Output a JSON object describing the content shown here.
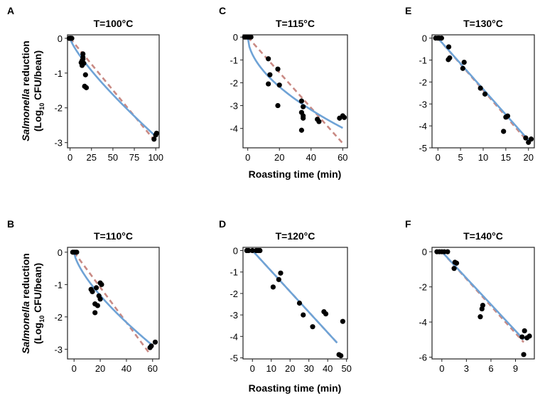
{
  "figure": {
    "ylabel_line1_italic": "Salmonella",
    "ylabel_line1_rest": " reduction",
    "ylabel_line2_pre": "(Log",
    "ylabel_line2_sub": "10",
    "ylabel_line2_post": " CFU/bean)",
    "xlabel": "Roasting time (min)",
    "colors": {
      "points": "#000000",
      "fit_solid": "#6fa3d6",
      "fit_dashed": "#c98a84",
      "frame": "#222222"
    }
  },
  "chart_data": [
    {
      "panel": "A",
      "type": "scatter",
      "title": "T=100°C",
      "xlim": [
        -3,
        104
      ],
      "ylim": [
        -3.15,
        0.1
      ],
      "xticks": [
        0,
        25,
        50,
        75,
        100
      ],
      "yticks": [
        0,
        -1,
        -2,
        -3
      ],
      "xlabel": "",
      "ylabel": "Salmonella reduction (Log10 CFU/bean)",
      "points": [
        [
          -1,
          0
        ],
        [
          0,
          0
        ],
        [
          1,
          0
        ],
        [
          2,
          0
        ],
        [
          0.5,
          0
        ],
        [
          15,
          -0.45
        ],
        [
          15,
          -0.55
        ],
        [
          14,
          -0.65
        ],
        [
          15,
          -0.6
        ],
        [
          13,
          -0.7
        ],
        [
          14,
          -0.78
        ],
        [
          16,
          -0.72
        ],
        [
          18,
          -1.05
        ],
        [
          17,
          -1.38
        ],
        [
          19,
          -1.42
        ],
        [
          98,
          -2.9
        ],
        [
          100,
          -2.78
        ],
        [
          101,
          -2.73
        ]
      ],
      "fit_solid": {
        "model": "weibull",
        "x_end": 100,
        "y_end": -2.82,
        "shape": 0.8
      },
      "fit_dashed": {
        "model": "linear",
        "x_start": 0,
        "x_end": 98,
        "y_end": -2.92
      }
    },
    {
      "panel": "C",
      "type": "scatter",
      "title": "T=115°C",
      "xlim": [
        -3,
        63
      ],
      "ylim": [
        -4.85,
        0.1
      ],
      "xticks": [
        0,
        20,
        40,
        60
      ],
      "yticks": [
        0,
        -1,
        -2,
        -3,
        -4
      ],
      "xlabel": "Roasting time (min)",
      "ylabel": "",
      "points": [
        [
          -1,
          0
        ],
        [
          0,
          0
        ],
        [
          1,
          0
        ],
        [
          2,
          0
        ],
        [
          -2,
          0
        ],
        [
          13,
          -0.95
        ],
        [
          14,
          -1.65
        ],
        [
          13,
          -2.05
        ],
        [
          19,
          -1.4
        ],
        [
          20,
          -2.1
        ],
        [
          19,
          -3.0
        ],
        [
          34,
          -2.8
        ],
        [
          35,
          -3.05
        ],
        [
          34,
          -3.3
        ],
        [
          35,
          -3.45
        ],
        [
          35,
          -3.55
        ],
        [
          34,
          -4.08
        ],
        [
          44,
          -3.6
        ],
        [
          45,
          -3.7
        ],
        [
          58,
          -3.55
        ],
        [
          60,
          -3.45
        ],
        [
          61,
          -3.52
        ]
      ],
      "fit_solid": {
        "model": "weibull",
        "x_end": 60,
        "y_end": -3.98,
        "shape": 0.55
      },
      "fit_dashed": {
        "model": "linear",
        "x_start": 0,
        "x_end": 60,
        "y_end": -4.65
      }
    },
    {
      "panel": "E",
      "type": "scatter",
      "title": "T=130°C",
      "xlim": [
        -1.3,
        21.3
      ],
      "ylim": [
        -5,
        0.15
      ],
      "xticks": [
        0,
        5,
        10,
        15,
        20
      ],
      "yticks": [
        0,
        -1,
        -2,
        -3,
        -4,
        -5
      ],
      "xlabel": "",
      "ylabel": "",
      "points": [
        [
          -0.5,
          0
        ],
        [
          0,
          0
        ],
        [
          0.3,
          0
        ],
        [
          0.8,
          0
        ],
        [
          2.4,
          -0.4
        ],
        [
          2.3,
          -0.98
        ],
        [
          2.6,
          -0.9
        ],
        [
          5.5,
          -1.38
        ],
        [
          5.8,
          -1.1
        ],
        [
          9.4,
          -2.28
        ],
        [
          10.4,
          -2.55
        ],
        [
          14.5,
          -4.25
        ],
        [
          15,
          -3.6
        ],
        [
          15.4,
          -3.55
        ],
        [
          19.4,
          -4.55
        ],
        [
          20,
          -4.75
        ],
        [
          20.6,
          -4.6
        ]
      ],
      "fit_solid": {
        "model": "weibull",
        "x_end": 20,
        "y_end": -4.65,
        "shape": 1.0
      },
      "fit_dashed": {
        "model": "linear",
        "x_start": 0,
        "x_end": 20,
        "y_end": -4.75
      }
    },
    {
      "panel": "B",
      "type": "scatter",
      "title": "T=110°C",
      "xlim": [
        -5,
        65
      ],
      "ylim": [
        -3.3,
        0.15
      ],
      "xticks": [
        0,
        20,
        40,
        60
      ],
      "yticks": [
        0,
        -1,
        -2,
        -3
      ],
      "xlabel": "",
      "ylabel": "Salmonella reduction (Log10 CFU/bean)",
      "points": [
        [
          -1,
          0
        ],
        [
          0,
          0
        ],
        [
          1,
          0
        ],
        [
          2,
          0
        ],
        [
          13,
          -1.15
        ],
        [
          14,
          -1.22
        ],
        [
          17,
          -1.1
        ],
        [
          20,
          -0.95
        ],
        [
          21,
          -1.0
        ],
        [
          19,
          -1.35
        ],
        [
          20,
          -1.45
        ],
        [
          16,
          -1.6
        ],
        [
          18,
          -1.65
        ],
        [
          16,
          -1.87
        ],
        [
          58,
          -2.95
        ],
        [
          59,
          -2.9
        ],
        [
          62,
          -2.78
        ]
      ],
      "fit_solid": {
        "model": "weibull",
        "x_end": 59,
        "y_end": -2.85,
        "shape": 0.7
      },
      "fit_dashed": {
        "model": "linear",
        "x_start": 0,
        "x_end": 58,
        "y_end": -3.15
      }
    },
    {
      "panel": "D",
      "type": "scatter",
      "title": "T=120°C",
      "xlim": [
        -5,
        50.5
      ],
      "ylim": [
        -5.05,
        0.15
      ],
      "xticks": [
        0,
        10,
        20,
        30,
        40,
        50
      ],
      "yticks": [
        0,
        -1,
        -2,
        -3,
        -4,
        -5
      ],
      "xlabel": "Roasting time (min)",
      "ylabel": "",
      "points": [
        [
          -3,
          0
        ],
        [
          -2,
          0
        ],
        [
          0,
          0
        ],
        [
          2,
          0
        ],
        [
          3,
          0
        ],
        [
          4,
          0
        ],
        [
          11,
          -1.7
        ],
        [
          14,
          -1.35
        ],
        [
          15,
          -1.05
        ],
        [
          25,
          -2.45
        ],
        [
          27,
          -3.0
        ],
        [
          32,
          -3.55
        ],
        [
          38,
          -2.85
        ],
        [
          39,
          -2.95
        ],
        [
          46,
          -4.85
        ],
        [
          47,
          -4.9
        ],
        [
          48,
          -3.3
        ]
      ],
      "fit_solid": {
        "model": "weibull",
        "x_end": 45,
        "y_end": -4.3,
        "shape": 1.0
      },
      "fit_dashed": {
        "model": "linear",
        "x_start": 0,
        "x_end": 45,
        "y_end": -4.3
      }
    },
    {
      "panel": "F",
      "type": "scatter",
      "title": "T=140°C",
      "xlim": [
        -1.2,
        11.3
      ],
      "ylim": [
        -6.1,
        0.25
      ],
      "xticks": [
        0,
        3,
        6,
        9
      ],
      "yticks": [
        0,
        -2,
        -4,
        -6
      ],
      "xlabel": "",
      "ylabel": "",
      "points": [
        [
          -0.6,
          0
        ],
        [
          -0.3,
          0
        ],
        [
          0,
          0
        ],
        [
          0.3,
          0
        ],
        [
          0.7,
          0
        ],
        [
          1.5,
          -0.95
        ],
        [
          1.6,
          -0.6
        ],
        [
          1.8,
          -0.65
        ],
        [
          4.7,
          -3.7
        ],
        [
          4.9,
          -3.25
        ],
        [
          5.0,
          -3.05
        ],
        [
          9.8,
          -4.85
        ],
        [
          10.1,
          -4.5
        ],
        [
          10.4,
          -4.9
        ],
        [
          10.7,
          -4.8
        ],
        [
          10.0,
          -5.85
        ]
      ],
      "fit_solid": {
        "model": "weibull",
        "x_end": 10,
        "y_end": -5.0,
        "shape": 1.0
      },
      "fit_dashed": {
        "model": "linear",
        "x_start": 0,
        "x_end": 10,
        "y_end": -5.15
      }
    }
  ]
}
